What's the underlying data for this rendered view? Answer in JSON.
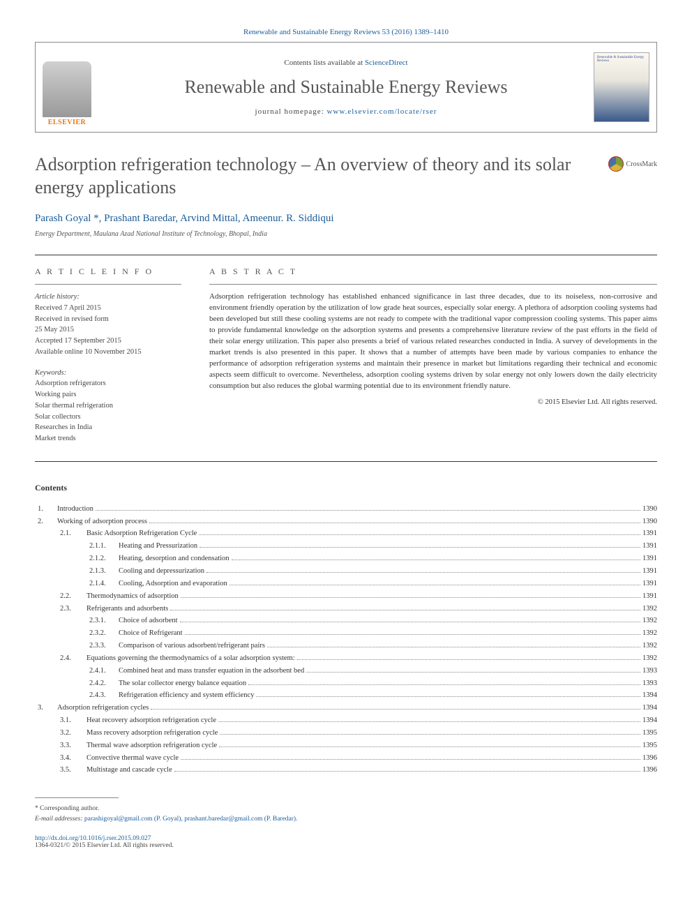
{
  "header": {
    "citation": "Renewable and Sustainable Energy Reviews 53 (2016) 1389–1410",
    "contents_available": "Contents lists available at ",
    "sciencedirect": "ScienceDirect",
    "journal_name": "Renewable and Sustainable Energy Reviews",
    "homepage_label": "journal homepage: ",
    "homepage_url": "www.elsevier.com/locate/rser",
    "elsevier": "ELSEVIER",
    "cover_text": "Renewable & Sustainable Energy Reviews"
  },
  "crossmark": "CrossMark",
  "title": "Adsorption refrigeration technology – An overview of theory and its solar energy applications",
  "authors": "Parash Goyal *, Prashant Baredar, Arvind Mittal, Ameenur. R. Siddiqui",
  "affiliation": "Energy Department, Maulana Azad National Institute of Technology, Bhopal, India",
  "article_info": {
    "heading": "A R T I C L E   I N F O",
    "history_label": "Article history:",
    "history": [
      "Received 7 April 2015",
      "Received in revised form",
      "25 May 2015",
      "Accepted 17 September 2015",
      "Available online 10 November 2015"
    ],
    "keywords_label": "Keywords:",
    "keywords": [
      "Adsorption refrigerators",
      "Working pairs",
      "Solar thermal refrigeration",
      "Solar collectors",
      "Researches in India",
      "Market trends"
    ]
  },
  "abstract": {
    "heading": "A B S T R A C T",
    "text": "Adsorption refrigeration technology has established enhanced significance in last three decades, due to its noiseless, non-corrosive and environment friendly operation by the utilization of low grade heat sources, especially solar energy. A plethora of adsorption cooling systems had been developed but still these cooling systems are not ready to compete with the traditional vapor compression cooling systems. This paper aims to provide fundamental knowledge on the adsorption systems and presents a comprehensive literature review of the past efforts in the field of their solar energy utilization. This paper also presents a brief of various related researches conducted in India. A survey of developments in the market trends is also presented in this paper. It shows that a number of attempts have been made by various companies to enhance the performance of adsorption refrigeration systems and maintain their presence in market but limitations regarding their technical and economic aspects seem difficult to overcome. Nevertheless, adsorption cooling systems driven by solar energy not only lowers down the daily electricity consumption but also reduces the global warming potential due to its environment friendly nature.",
    "copyright": "© 2015 Elsevier Ltd. All rights reserved."
  },
  "contents_heading": "Contents",
  "toc": [
    {
      "level": 1,
      "num": "1.",
      "title": "Introduction",
      "page": "1390"
    },
    {
      "level": 1,
      "num": "2.",
      "title": "Working of adsorption process",
      "page": "1390"
    },
    {
      "level": 2,
      "num": "2.1.",
      "title": "Basic Adsorption Refrigeration Cycle",
      "page": "1391"
    },
    {
      "level": 3,
      "num": "2.1.1.",
      "title": "Heating and Pressurization",
      "page": "1391"
    },
    {
      "level": 3,
      "num": "2.1.2.",
      "title": "Heating, desorption and condensation",
      "page": "1391"
    },
    {
      "level": 3,
      "num": "2.1.3.",
      "title": "Cooling and depressurization",
      "page": "1391"
    },
    {
      "level": 3,
      "num": "2.1.4.",
      "title": "Cooling, Adsorption and evaporation",
      "page": "1391"
    },
    {
      "level": 2,
      "num": "2.2.",
      "title": "Thermodynamics of adsorption",
      "page": "1391"
    },
    {
      "level": 2,
      "num": "2.3.",
      "title": "Refrigerants and adsorbents",
      "page": "1392"
    },
    {
      "level": 3,
      "num": "2.3.1.",
      "title": "Choice of adsorbent",
      "page": "1392"
    },
    {
      "level": 3,
      "num": "2.3.2.",
      "title": "Choice of Refrigerant",
      "page": "1392"
    },
    {
      "level": 3,
      "num": "2.3.3.",
      "title": "Comparison of various adsorbent/refrigerant pairs",
      "page": "1392"
    },
    {
      "level": 2,
      "num": "2.4.",
      "title": "Equations governing the thermodynamics of a solar adsorption system:",
      "page": "1392"
    },
    {
      "level": 3,
      "num": "2.4.1.",
      "title": "Combined heat and mass transfer equation in the adsorbent bed",
      "page": "1393"
    },
    {
      "level": 3,
      "num": "2.4.2.",
      "title": "The solar collector energy balance equation",
      "page": "1393"
    },
    {
      "level": 3,
      "num": "2.4.3.",
      "title": "Refrigeration efficiency and system efficiency",
      "page": "1394"
    },
    {
      "level": 1,
      "num": "3.",
      "title": "Adsorption refrigeration cycles",
      "page": "1394"
    },
    {
      "level": 2,
      "num": "3.1.",
      "title": "Heat recovery adsorption refrigeration cycle",
      "page": "1394"
    },
    {
      "level": 2,
      "num": "3.2.",
      "title": "Mass recovery adsorption refrigeration cycle",
      "page": "1395"
    },
    {
      "level": 2,
      "num": "3.3.",
      "title": "Thermal wave adsorption refrigeration cycle",
      "page": "1395"
    },
    {
      "level": 2,
      "num": "3.4.",
      "title": "Convective thermal wave cycle",
      "page": "1396"
    },
    {
      "level": 2,
      "num": "3.5.",
      "title": "Multistage and cascade cycle",
      "page": "1396"
    }
  ],
  "footer": {
    "corresponding": "* Corresponding author.",
    "email_label": "E-mail addresses: ",
    "emails": "parashigoyal@gmail.com (P. Goyal), prashant.baredar@gmail.com (P. Baredar).",
    "doi": "http://dx.doi.org/10.1016/j.rser.2015.09.027",
    "issn": "1364-0321/© 2015 Elsevier Ltd. All rights reserved."
  }
}
